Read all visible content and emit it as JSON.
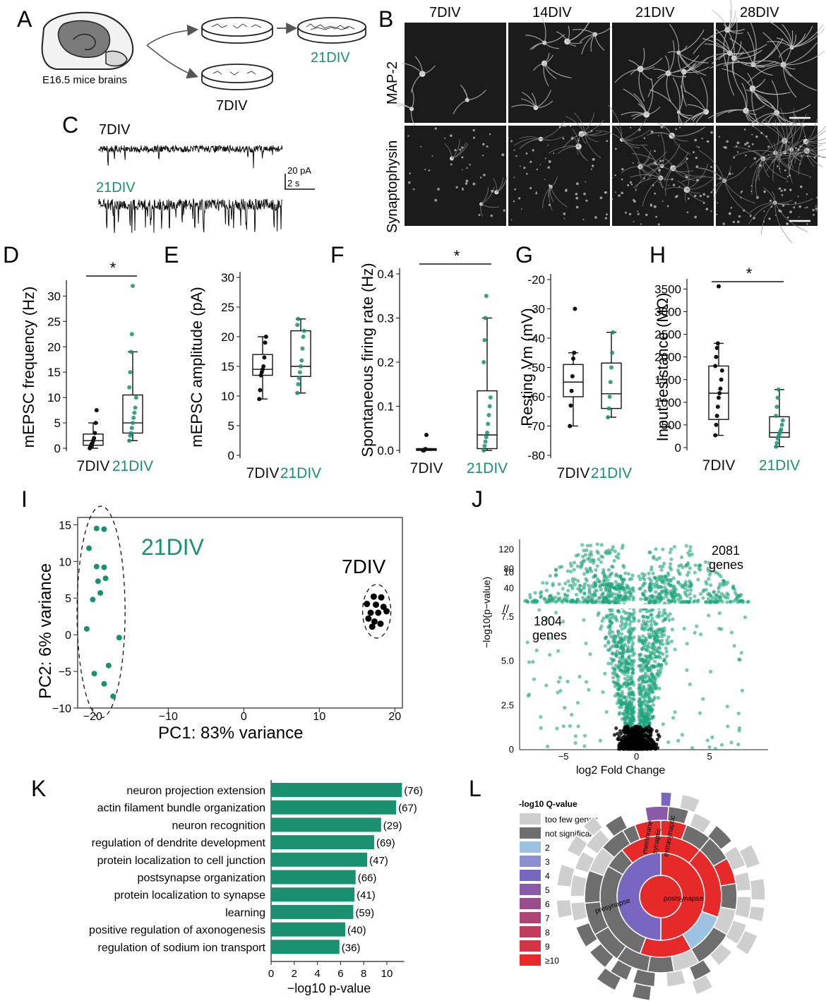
{
  "panel_letters": {
    "A": "A",
    "B": "B",
    "C": "C",
    "D": "D",
    "E": "E",
    "F": "F",
    "G": "G",
    "H": "H",
    "I": "I",
    "J": "J",
    "K": "K",
    "L": "L"
  },
  "panel_a": {
    "brain_label": "E16.5 mice brains",
    "dish_top_label": "21DIV",
    "dish_bottom_label": "7DIV",
    "accent": "#1a9070"
  },
  "panel_b": {
    "columns": [
      "7DIV",
      "14DIV",
      "21DIV",
      "28DIV"
    ],
    "rows": [
      "MAP-2",
      "Synaptophysin"
    ]
  },
  "panel_c": {
    "top_label": "7DIV",
    "bottom_label": "21DIV",
    "scale_y": "20 pA",
    "scale_x": "2 s"
  },
  "box_plots": [
    {
      "id": "D",
      "ylabel": "mEPSC  frequency (Hz)",
      "ylim": [
        0,
        32
      ],
      "yticks": [
        0,
        5,
        10,
        15,
        20,
        25,
        30
      ],
      "groups": [
        "7DIV",
        "21DIV"
      ],
      "boxes": [
        {
          "min": 0,
          "q1": 0.6,
          "median": 1.5,
          "q3": 2.8,
          "max": 5,
          "points": [
            0,
            0.3,
            0.8,
            1,
            1.5,
            2,
            3,
            5,
            7.5
          ]
        },
        {
          "min": 1.5,
          "q1": 3,
          "median": 5,
          "q3": 10.5,
          "max": 19,
          "points": [
            1.5,
            2.5,
            3,
            4,
            5,
            6,
            7,
            8,
            10,
            12,
            15,
            19,
            22.5,
            32
          ]
        }
      ],
      "sig": true,
      "sig_label": "*"
    },
    {
      "id": "E",
      "ylabel": "mEPSC  amplitude (pA)",
      "ylim": [
        0,
        30
      ],
      "yticks": [
        0,
        5,
        10,
        15,
        20,
        25,
        30
      ],
      "groups": [
        "7DIV",
        "21DIV"
      ],
      "boxes": [
        {
          "min": 9.5,
          "q1": 13.5,
          "median": 14.5,
          "q3": 17,
          "max": 20,
          "points": [
            9.5,
            11,
            13.5,
            14,
            14.5,
            15,
            16.5,
            19,
            20
          ]
        },
        {
          "min": 10.5,
          "q1": 13.3,
          "median": 15,
          "q3": 21,
          "max": 23,
          "points": [
            10.5,
            12,
            13,
            14,
            15,
            16,
            18,
            20,
            21,
            22,
            23
          ]
        }
      ],
      "sig": false,
      "sig_label": ""
    },
    {
      "id": "F",
      "ylabel": "Spontaneous firing rate (Hz)",
      "ylim": [
        0,
        0.4
      ],
      "yticks": [
        0,
        0.1,
        0.2,
        0.3,
        0.4
      ],
      "ytick_labels": [
        "0.0",
        "0.1",
        "0.2",
        "0.3",
        "0.4"
      ],
      "groups": [
        "7DIV",
        "21DIV"
      ],
      "boxes": [
        {
          "min": 0,
          "q1": 0,
          "median": 0.002,
          "q3": 0.004,
          "max": 0.004,
          "points": [
            0,
            0,
            0.002,
            0.003,
            0.035
          ]
        },
        {
          "min": 0,
          "q1": 0.004,
          "median": 0.035,
          "q3": 0.135,
          "max": 0.3,
          "points": [
            0,
            0.01,
            0.02,
            0.03,
            0.04,
            0.06,
            0.08,
            0.1,
            0.12,
            0.2,
            0.25,
            0.3,
            0.35
          ]
        }
      ],
      "sig": true,
      "sig_label": "*"
    },
    {
      "id": "G",
      "ylabel": "Resting Vm (mV)",
      "ylim": [
        -80,
        -20
      ],
      "yticks": [
        -80,
        -70,
        -60,
        -50,
        -40,
        -30,
        -20
      ],
      "groups": [
        "7DIV",
        "21DIV"
      ],
      "boxes": [
        {
          "min": -70,
          "q1": -60,
          "median": -55,
          "q3": -49,
          "max": -45,
          "points": [
            -70,
            -63,
            -58,
            -53,
            -47,
            -45,
            -30
          ]
        },
        {
          "min": -67,
          "q1": -64,
          "median": -59,
          "q3": -48.5,
          "max": -38,
          "points": [
            -67,
            -64,
            -60,
            -55,
            -50,
            -45,
            -38
          ]
        }
      ],
      "sig": false,
      "sig_label": ""
    },
    {
      "id": "H",
      "ylabel": "Input resistance (MΩ)",
      "ylim": [
        0,
        3600
      ],
      "yticks": [
        0,
        500,
        1000,
        1500,
        2000,
        2500,
        3000,
        3500
      ],
      "groups": [
        "7DIV",
        "21DIV"
      ],
      "boxes": [
        {
          "min": 270,
          "q1": 620,
          "median": 1200,
          "q3": 1800,
          "max": 2300,
          "points": [
            270,
            500,
            700,
            900,
            1100,
            1200,
            1300,
            1500,
            1700,
            1800,
            2000,
            2200,
            2300,
            3560
          ]
        },
        {
          "min": 20,
          "q1": 230,
          "median": 330,
          "q3": 680,
          "max": 1280,
          "points": [
            20,
            100,
            200,
            250,
            300,
            350,
            400,
            500,
            600,
            700,
            900,
            1100,
            1280
          ]
        }
      ],
      "sig": true,
      "sig_label": "*"
    }
  ],
  "panel_i": {
    "xlabel": "PC1: 83% variance",
    "ylabel": "PC2: 6% variance",
    "xlim": [
      -22,
      21
    ],
    "ylim": [
      -10,
      16
    ],
    "xticks": [
      -20,
      -10,
      0,
      10,
      20
    ],
    "xtick_labels": [
      "−20",
      "−10",
      "0",
      "10",
      "20"
    ],
    "yticks": [
      -10,
      -5,
      0,
      5,
      10,
      15
    ],
    "ytick_labels": [
      "−10",
      "−5",
      "0",
      "5",
      "10",
      "15"
    ],
    "group_21": {
      "name": "21DIV",
      "color": "#1a9070",
      "points": [
        [
          -19.5,
          14.5
        ],
        [
          -18.5,
          14.4
        ],
        [
          -20.5,
          11.8
        ],
        [
          -19.5,
          9.3
        ],
        [
          -18.5,
          9.2
        ],
        [
          -19.3,
          7.3
        ],
        [
          -18.3,
          7.7
        ],
        [
          -19.0,
          5.7
        ],
        [
          -20,
          4.8
        ],
        [
          -20.8,
          0.8
        ],
        [
          -16.5,
          -0.4
        ],
        [
          -17.9,
          -4.2
        ],
        [
          -19.8,
          -5.3
        ],
        [
          -18.5,
          -6.7
        ],
        [
          -17.3,
          -8.4
        ]
      ]
    },
    "group_7": {
      "name": "7DIV",
      "color": "#000000",
      "points": [
        [
          17.2,
          5.2
        ],
        [
          18.2,
          5.1
        ],
        [
          16.3,
          4.2
        ],
        [
          17.5,
          4.1
        ],
        [
          18.5,
          3.8
        ],
        [
          16.8,
          3.0
        ],
        [
          17.8,
          3.0
        ],
        [
          18.9,
          3.2
        ],
        [
          16.5,
          2.2
        ],
        [
          17.3,
          1.8
        ],
        [
          18.1,
          1.5
        ],
        [
          17.0,
          1.1
        ]
      ]
    }
  },
  "panel_j": {
    "xlabel": "log2 Fold Change",
    "ylabel": "−log10(p−value)",
    "up_count": "2081",
    "up_unit": "genes",
    "down_count": "1804",
    "down_unit": "genes",
    "xticks": [
      -5,
      0,
      5
    ],
    "xtick_labels": [
      "−5",
      "0",
      "5"
    ],
    "yticks_low": [
      "0",
      "2.5",
      "5.0",
      "7.5",
      "10"
    ],
    "yticks_high": [
      "40",
      "80",
      "120"
    ],
    "color_sig": "#1fa47d",
    "color_ns": "#000000",
    "axis_break": "//"
  },
  "panel_k": {
    "xlabel": "−log10  p-value",
    "xticks": [
      0,
      2,
      4,
      6,
      8,
      10
    ],
    "bar_color": "#1a9070",
    "terms": [
      {
        "label": "neuron projection extension",
        "value": 11.3,
        "count": "(76)"
      },
      {
        "label": "actin filament bundle organization",
        "value": 10.8,
        "count": "(67)"
      },
      {
        "label": "neuron recognition",
        "value": 9.5,
        "count": "(29)"
      },
      {
        "label": "regulation of dendrite development",
        "value": 8.9,
        "count": "(69)"
      },
      {
        "label": "protein localization to cell junction",
        "value": 8.3,
        "count": "(47)"
      },
      {
        "label": "postsynapse organization",
        "value": 7.3,
        "count": "(66)"
      },
      {
        "label": "protein localization to synapse",
        "value": 7.2,
        "count": "(41)"
      },
      {
        "label": "learning",
        "value": 7.1,
        "count": "(59)"
      },
      {
        "label": "positive regulation of axonogenesis",
        "value": 6.4,
        "count": "(40)"
      },
      {
        "label": "regulation of sodium ion transport",
        "value": 5.9,
        "count": "(36)"
      }
    ]
  },
  "panel_l": {
    "legend_title": "-log10 Q-value",
    "legend": [
      {
        "label": "too few genes",
        "color": "#cfcfcf"
      },
      {
        "label": "not significant",
        "color": "#6e6e6e"
      },
      {
        "label": "2",
        "color": "#9dc1e0"
      },
      {
        "label": "3",
        "color": "#8c8fd0"
      },
      {
        "label": "4",
        "color": "#7966c0"
      },
      {
        "label": "5",
        "color": "#8a5aa8"
      },
      {
        "label": "6",
        "color": "#9c4d8e"
      },
      {
        "label": "7",
        "color": "#b04475"
      },
      {
        "label": "8",
        "color": "#c23a5c"
      },
      {
        "label": "9",
        "color": "#d63444"
      },
      {
        "label": "≥10",
        "color": "#e62a2a"
      }
    ],
    "labels": {
      "post": "postsynapse",
      "pre": "presynapse",
      "extra": "extrasynaptic",
      "syn": "synaptic",
      "mem": "membrane"
    }
  }
}
